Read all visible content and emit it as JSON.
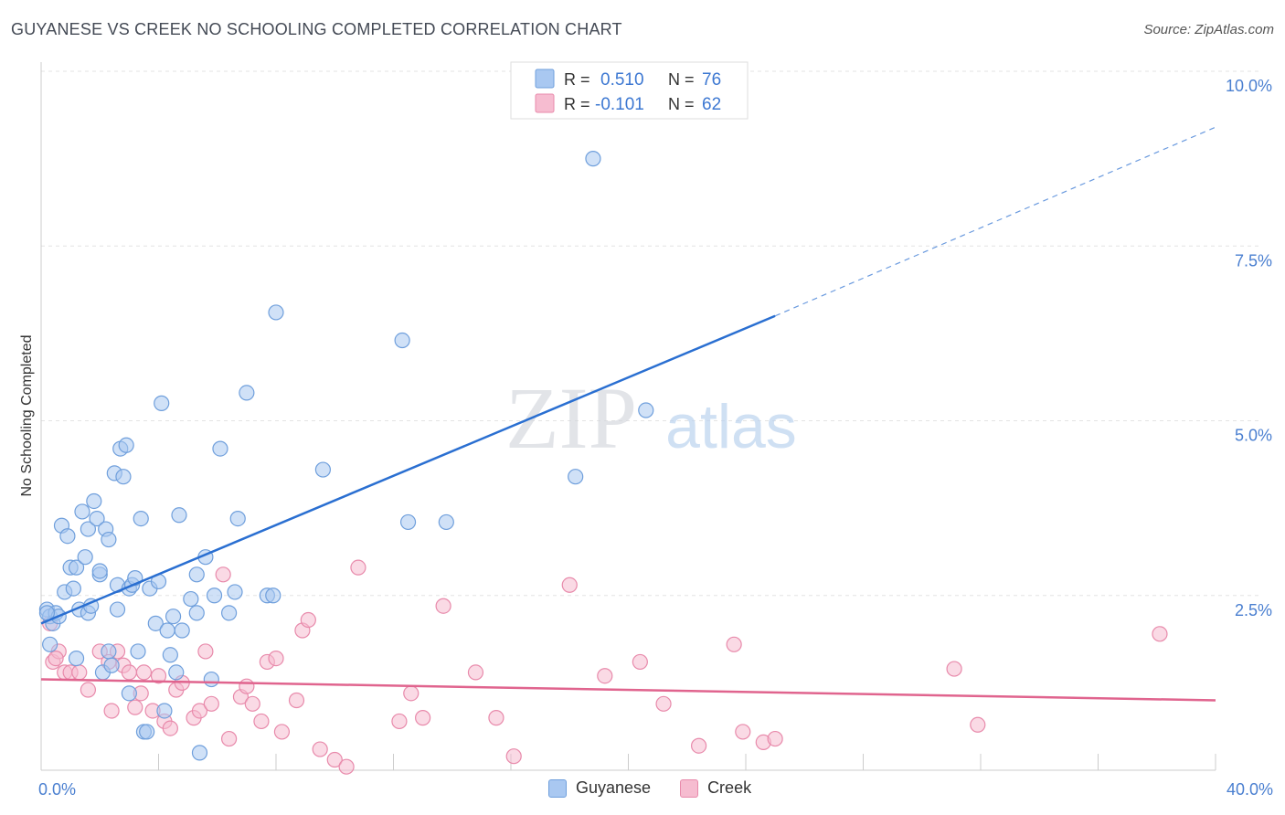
{
  "header": {
    "title": "GUYANESE VS CREEK NO SCHOOLING COMPLETED CORRELATION CHART",
    "source": "Source: ZipAtlas.com"
  },
  "watermark": {
    "zip": "ZIP",
    "atlas": "atlas"
  },
  "colors": {
    "guyanese_fill": "#a9c8f1",
    "guyanese_stroke": "#6f9fdc",
    "guyanese_line": "#2a6fd1",
    "creek_fill": "#f6bcd0",
    "creek_stroke": "#e88aab",
    "creek_line": "#e0648e",
    "axis_text": "#4a7fd0"
  },
  "legend": {
    "rows": [
      {
        "r_label": "R =",
        "r_value": "0.510",
        "n_label": "N =",
        "n_value": "76"
      },
      {
        "r_label": "R =",
        "r_value": "-0.101",
        "n_label": "N =",
        "n_value": "62"
      }
    ]
  },
  "chart_data": {
    "type": "scatter",
    "xlabel": "",
    "ylabel": "No Schooling Completed",
    "xlim": [
      0,
      40
    ],
    "ylim": [
      0,
      10
    ],
    "x_ticks": [
      "0.0%",
      "40.0%"
    ],
    "y_ticks": [
      {
        "value": 2.5,
        "label": "2.5%"
      },
      {
        "value": 5.0,
        "label": "5.0%"
      },
      {
        "value": 7.5,
        "label": "7.5%"
      },
      {
        "value": 10.0,
        "label": "10.0%"
      }
    ],
    "grid": true,
    "legend_position": "top-center",
    "series": [
      {
        "name": "Guyanese",
        "r": 0.51,
        "n": 76,
        "trend": {
          "x0": 0,
          "y0": 2.1,
          "x1": 25,
          "y1": 6.5,
          "dashed_to_x": 40,
          "dashed_to_y": 9.2
        },
        "points": [
          [
            0.2,
            2.3
          ],
          [
            0.3,
            2.2
          ],
          [
            0.4,
            2.1
          ],
          [
            0.5,
            2.25
          ],
          [
            0.6,
            2.2
          ],
          [
            0.3,
            1.8
          ],
          [
            0.7,
            3.5
          ],
          [
            0.8,
            2.55
          ],
          [
            0.9,
            3.35
          ],
          [
            1.0,
            2.9
          ],
          [
            1.1,
            2.6
          ],
          [
            1.2,
            2.9
          ],
          [
            1.2,
            1.6
          ],
          [
            1.3,
            2.3
          ],
          [
            1.4,
            3.7
          ],
          [
            1.5,
            3.05
          ],
          [
            1.6,
            3.45
          ],
          [
            1.6,
            2.25
          ],
          [
            1.7,
            2.35
          ],
          [
            1.8,
            3.85
          ],
          [
            1.9,
            3.6
          ],
          [
            2.0,
            2.8
          ],
          [
            2.0,
            2.85
          ],
          [
            2.1,
            1.4
          ],
          [
            2.2,
            3.45
          ],
          [
            2.3,
            3.3
          ],
          [
            2.3,
            1.7
          ],
          [
            2.4,
            1.5
          ],
          [
            2.5,
            4.25
          ],
          [
            2.6,
            2.65
          ],
          [
            2.6,
            2.3
          ],
          [
            2.7,
            4.6
          ],
          [
            2.8,
            4.2
          ],
          [
            2.9,
            4.65
          ],
          [
            3.0,
            2.6
          ],
          [
            3.0,
            1.1
          ],
          [
            3.1,
            2.65
          ],
          [
            3.2,
            2.75
          ],
          [
            3.3,
            1.7
          ],
          [
            3.4,
            3.6
          ],
          [
            3.5,
            0.55
          ],
          [
            3.6,
            0.55
          ],
          [
            3.7,
            2.6
          ],
          [
            3.9,
            2.1
          ],
          [
            4.0,
            2.7
          ],
          [
            4.1,
            5.25
          ],
          [
            4.2,
            0.85
          ],
          [
            4.3,
            2.0
          ],
          [
            4.4,
            1.65
          ],
          [
            4.5,
            2.2
          ],
          [
            4.6,
            1.4
          ],
          [
            4.7,
            3.65
          ],
          [
            4.8,
            2.0
          ],
          [
            5.1,
            2.45
          ],
          [
            5.3,
            2.25
          ],
          [
            5.3,
            2.8
          ],
          [
            5.4,
            0.25
          ],
          [
            5.6,
            3.05
          ],
          [
            5.8,
            1.3
          ],
          [
            5.9,
            2.5
          ],
          [
            6.1,
            4.6
          ],
          [
            6.4,
            2.25
          ],
          [
            6.7,
            3.6
          ],
          [
            6.6,
            2.55
          ],
          [
            7.0,
            5.4
          ],
          [
            7.7,
            2.5
          ],
          [
            7.9,
            2.5
          ],
          [
            8.0,
            6.55
          ],
          [
            9.6,
            4.3
          ],
          [
            12.3,
            6.15
          ],
          [
            12.5,
            3.55
          ],
          [
            13.8,
            3.55
          ],
          [
            18.2,
            4.2
          ],
          [
            18.8,
            8.75
          ],
          [
            20.6,
            5.15
          ],
          [
            0.2,
            2.25
          ]
        ]
      },
      {
        "name": "Creek",
        "r": -0.101,
        "n": 62,
        "trend": {
          "x0": 0,
          "y0": 1.3,
          "x1": 40,
          "y1": 1.0
        },
        "points": [
          [
            0.3,
            2.1
          ],
          [
            0.4,
            1.55
          ],
          [
            0.6,
            1.7
          ],
          [
            0.8,
            1.4
          ],
          [
            1.0,
            1.4
          ],
          [
            1.3,
            1.4
          ],
          [
            1.6,
            1.15
          ],
          [
            2.0,
            1.7
          ],
          [
            2.3,
            1.55
          ],
          [
            2.4,
            0.85
          ],
          [
            2.6,
            1.7
          ],
          [
            2.8,
            1.5
          ],
          [
            3.0,
            1.4
          ],
          [
            3.2,
            0.9
          ],
          [
            3.4,
            1.1
          ],
          [
            3.5,
            1.4
          ],
          [
            3.8,
            0.85
          ],
          [
            4.0,
            1.35
          ],
          [
            4.2,
            0.7
          ],
          [
            4.4,
            0.6
          ],
          [
            4.6,
            1.15
          ],
          [
            4.8,
            1.25
          ],
          [
            5.2,
            0.75
          ],
          [
            5.4,
            0.85
          ],
          [
            5.6,
            1.7
          ],
          [
            5.8,
            0.95
          ],
          [
            6.2,
            2.8
          ],
          [
            6.4,
            0.45
          ],
          [
            6.8,
            1.05
          ],
          [
            7.0,
            1.2
          ],
          [
            7.2,
            0.95
          ],
          [
            7.5,
            0.7
          ],
          [
            7.7,
            1.55
          ],
          [
            8.0,
            1.6
          ],
          [
            8.2,
            0.55
          ],
          [
            8.7,
            1.0
          ],
          [
            8.9,
            2.0
          ],
          [
            9.1,
            2.15
          ],
          [
            9.5,
            0.3
          ],
          [
            10.0,
            0.15
          ],
          [
            10.4,
            0.05
          ],
          [
            10.8,
            2.9
          ],
          [
            12.2,
            0.7
          ],
          [
            12.6,
            1.1
          ],
          [
            13.0,
            0.75
          ],
          [
            13.7,
            2.35
          ],
          [
            14.8,
            1.4
          ],
          [
            15.5,
            0.75
          ],
          [
            16.1,
            0.2
          ],
          [
            18.0,
            2.65
          ],
          [
            19.2,
            1.35
          ],
          [
            20.4,
            1.55
          ],
          [
            21.2,
            0.95
          ],
          [
            22.4,
            0.35
          ],
          [
            23.6,
            1.8
          ],
          [
            23.9,
            0.55
          ],
          [
            24.6,
            0.4
          ],
          [
            25.0,
            0.45
          ],
          [
            31.1,
            1.45
          ],
          [
            31.9,
            0.65
          ],
          [
            38.1,
            1.95
          ],
          [
            0.5,
            1.6
          ]
        ]
      }
    ]
  },
  "bottom_legend": {
    "items": [
      {
        "label": "Guyanese"
      },
      {
        "label": "Creek"
      }
    ]
  }
}
